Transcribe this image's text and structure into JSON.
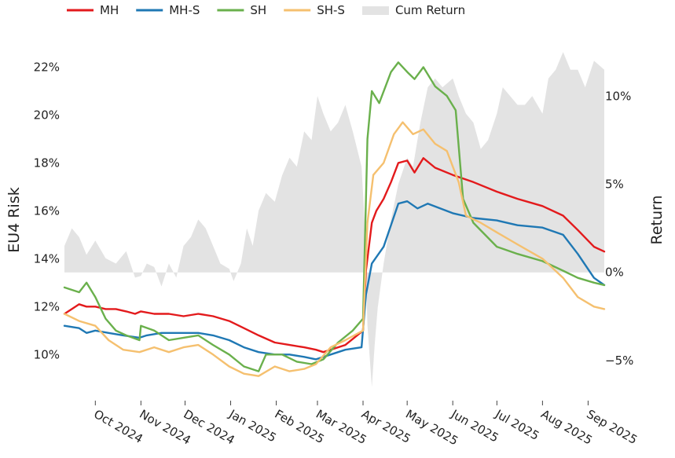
{
  "chart_data": {
    "type": "line",
    "xlabel": "",
    "ylabel": "EU4 Risk",
    "y2label": "Return",
    "ylim": [
      8.5,
      23.0
    ],
    "y2lim": [
      -6.7,
      13.0
    ],
    "y_ticks": [
      10,
      12,
      14,
      16,
      18,
      20,
      22
    ],
    "y_tick_labels": [
      "10%",
      "12%",
      "14%",
      "16%",
      "18%",
      "20%",
      "22%"
    ],
    "y2_ticks": [
      -5,
      0,
      5,
      10
    ],
    "y2_tick_labels": [
      "−5%",
      "0%",
      "5%",
      "10%"
    ],
    "x_range": [
      "2024-09-10",
      "2025-09-12"
    ],
    "x_ticks": [
      "2024-10-01",
      "2024-11-01",
      "2024-12-01",
      "2025-01-01",
      "2025-02-01",
      "2025-03-01",
      "2025-04-01",
      "2025-05-01",
      "2025-06-01",
      "2025-07-01",
      "2025-08-01",
      "2025-09-01"
    ],
    "x_tick_labels": [
      "Oct 2024",
      "Nov 2024",
      "Dec 2024",
      "Jan 2025",
      "Feb 2025",
      "Mar 2025",
      "Apr 2025",
      "May 2025",
      "Jun 2025",
      "Jul 2025",
      "Aug 2025",
      "Sep 2025"
    ],
    "legend_position": "top-left",
    "grid": false,
    "colors": {
      "MH": "#e31a1c",
      "MH-S": "#1f78b4",
      "SH": "#6ab04c",
      "SH-S": "#f5c06f",
      "Cum Return": "#e3e3e3"
    },
    "series": [
      {
        "name": "MH",
        "axis": "left",
        "points": [
          [
            "2024-09-10",
            11.7
          ],
          [
            "2024-09-15",
            11.9
          ],
          [
            "2024-09-20",
            12.1
          ],
          [
            "2024-09-25",
            12.0
          ],
          [
            "2024-10-01",
            12.0
          ],
          [
            "2024-10-08",
            11.9
          ],
          [
            "2024-10-15",
            11.9
          ],
          [
            "2024-10-22",
            11.8
          ],
          [
            "2024-10-28",
            11.7
          ],
          [
            "2024-11-01",
            11.8
          ],
          [
            "2024-11-10",
            11.7
          ],
          [
            "2024-11-20",
            11.7
          ],
          [
            "2024-11-30",
            11.6
          ],
          [
            "2024-12-10",
            11.7
          ],
          [
            "2024-12-20",
            11.6
          ],
          [
            "2024-12-31",
            11.4
          ],
          [
            "2025-01-10",
            11.1
          ],
          [
            "2025-01-20",
            10.8
          ],
          [
            "2025-01-31",
            10.5
          ],
          [
            "2025-02-10",
            10.4
          ],
          [
            "2025-02-20",
            10.3
          ],
          [
            "2025-02-28",
            10.2
          ],
          [
            "2025-03-05",
            10.1
          ],
          [
            "2025-03-10",
            10.2
          ],
          [
            "2025-03-20",
            10.4
          ],
          [
            "2025-03-28",
            10.8
          ],
          [
            "2025-04-01",
            11.0
          ],
          [
            "2025-04-03",
            13.5
          ],
          [
            "2025-04-07",
            15.5
          ],
          [
            "2025-04-10",
            16.0
          ],
          [
            "2025-04-15",
            16.5
          ],
          [
            "2025-04-20",
            17.2
          ],
          [
            "2025-04-25",
            18.0
          ],
          [
            "2025-05-01",
            18.1
          ],
          [
            "2025-05-06",
            17.6
          ],
          [
            "2025-05-12",
            18.2
          ],
          [
            "2025-05-20",
            17.8
          ],
          [
            "2025-06-01",
            17.5
          ],
          [
            "2025-06-15",
            17.2
          ],
          [
            "2025-07-01",
            16.8
          ],
          [
            "2025-07-15",
            16.5
          ],
          [
            "2025-08-01",
            16.2
          ],
          [
            "2025-08-15",
            15.8
          ],
          [
            "2025-08-25",
            15.2
          ],
          [
            "2025-09-05",
            14.5
          ],
          [
            "2025-09-12",
            14.3
          ]
        ]
      },
      {
        "name": "MH-S",
        "axis": "left",
        "points": [
          [
            "2024-09-10",
            11.2
          ],
          [
            "2024-09-20",
            11.1
          ],
          [
            "2024-09-25",
            10.9
          ],
          [
            "2024-10-01",
            11.0
          ],
          [
            "2024-10-10",
            10.9
          ],
          [
            "2024-10-20",
            10.8
          ],
          [
            "2024-10-31",
            10.7
          ],
          [
            "2024-11-05",
            10.8
          ],
          [
            "2024-11-15",
            10.9
          ],
          [
            "2024-11-30",
            10.9
          ],
          [
            "2024-12-10",
            10.9
          ],
          [
            "2024-12-20",
            10.8
          ],
          [
            "2024-12-31",
            10.6
          ],
          [
            "2025-01-10",
            10.3
          ],
          [
            "2025-01-20",
            10.1
          ],
          [
            "2025-01-31",
            10.0
          ],
          [
            "2025-02-10",
            10.0
          ],
          [
            "2025-02-20",
            9.9
          ],
          [
            "2025-02-28",
            9.8
          ],
          [
            "2025-03-10",
            10.0
          ],
          [
            "2025-03-20",
            10.2
          ],
          [
            "2025-03-31",
            10.3
          ],
          [
            "2025-04-03",
            12.5
          ],
          [
            "2025-04-07",
            13.8
          ],
          [
            "2025-04-15",
            14.5
          ],
          [
            "2025-04-25",
            16.3
          ],
          [
            "2025-05-01",
            16.4
          ],
          [
            "2025-05-08",
            16.1
          ],
          [
            "2025-05-15",
            16.3
          ],
          [
            "2025-06-01",
            15.9
          ],
          [
            "2025-06-15",
            15.7
          ],
          [
            "2025-07-01",
            15.6
          ],
          [
            "2025-07-15",
            15.4
          ],
          [
            "2025-08-01",
            15.3
          ],
          [
            "2025-08-15",
            15.0
          ],
          [
            "2025-08-25",
            14.2
          ],
          [
            "2025-09-05",
            13.2
          ],
          [
            "2025-09-12",
            12.9
          ]
        ]
      },
      {
        "name": "SH",
        "axis": "left",
        "points": [
          [
            "2024-09-10",
            12.8
          ],
          [
            "2024-09-20",
            12.6
          ],
          [
            "2024-09-25",
            13.0
          ],
          [
            "2024-10-01",
            12.4
          ],
          [
            "2024-10-08",
            11.5
          ],
          [
            "2024-10-15",
            11.0
          ],
          [
            "2024-10-22",
            10.8
          ],
          [
            "2024-10-31",
            10.6
          ],
          [
            "2024-11-01",
            11.2
          ],
          [
            "2024-11-10",
            11.0
          ],
          [
            "2024-11-20",
            10.6
          ],
          [
            "2024-11-30",
            10.7
          ],
          [
            "2024-12-10",
            10.8
          ],
          [
            "2024-12-20",
            10.4
          ],
          [
            "2024-12-31",
            10.0
          ],
          [
            "2025-01-10",
            9.5
          ],
          [
            "2025-01-20",
            9.3
          ],
          [
            "2025-01-25",
            10.0
          ],
          [
            "2025-02-05",
            10.0
          ],
          [
            "2025-02-15",
            9.7
          ],
          [
            "2025-02-25",
            9.6
          ],
          [
            "2025-03-05",
            9.8
          ],
          [
            "2025-03-15",
            10.5
          ],
          [
            "2025-03-25",
            11.0
          ],
          [
            "2025-04-01",
            11.5
          ],
          [
            "2025-04-04",
            19.0
          ],
          [
            "2025-04-07",
            21.0
          ],
          [
            "2025-04-12",
            20.5
          ],
          [
            "2025-04-20",
            21.8
          ],
          [
            "2025-04-25",
            22.2
          ],
          [
            "2025-05-01",
            21.8
          ],
          [
            "2025-05-06",
            21.5
          ],
          [
            "2025-05-12",
            22.0
          ],
          [
            "2025-05-20",
            21.2
          ],
          [
            "2025-05-28",
            20.8
          ],
          [
            "2025-06-03",
            20.2
          ],
          [
            "2025-06-08",
            16.5
          ],
          [
            "2025-06-15",
            15.5
          ],
          [
            "2025-07-01",
            14.5
          ],
          [
            "2025-07-15",
            14.2
          ],
          [
            "2025-08-01",
            13.9
          ],
          [
            "2025-08-15",
            13.5
          ],
          [
            "2025-08-25",
            13.2
          ],
          [
            "2025-09-05",
            13.0
          ],
          [
            "2025-09-12",
            12.9
          ]
        ]
      },
      {
        "name": "SH-S",
        "axis": "left",
        "points": [
          [
            "2024-09-10",
            11.7
          ],
          [
            "2024-09-20",
            11.4
          ],
          [
            "2024-10-01",
            11.2
          ],
          [
            "2024-10-10",
            10.6
          ],
          [
            "2024-10-20",
            10.2
          ],
          [
            "2024-10-31",
            10.1
          ],
          [
            "2024-11-10",
            10.3
          ],
          [
            "2024-11-20",
            10.1
          ],
          [
            "2024-11-30",
            10.3
          ],
          [
            "2024-12-10",
            10.4
          ],
          [
            "2024-12-20",
            10.0
          ],
          [
            "2024-12-31",
            9.5
          ],
          [
            "2025-01-10",
            9.2
          ],
          [
            "2025-01-20",
            9.1
          ],
          [
            "2025-01-31",
            9.5
          ],
          [
            "2025-02-10",
            9.3
          ],
          [
            "2025-02-20",
            9.4
          ],
          [
            "2025-02-28",
            9.6
          ],
          [
            "2025-03-10",
            10.3
          ],
          [
            "2025-03-20",
            10.6
          ],
          [
            "2025-04-01",
            11.0
          ],
          [
            "2025-04-04",
            15.5
          ],
          [
            "2025-04-08",
            17.5
          ],
          [
            "2025-04-15",
            18.0
          ],
          [
            "2025-04-22",
            19.2
          ],
          [
            "2025-04-28",
            19.7
          ],
          [
            "2025-05-05",
            19.2
          ],
          [
            "2025-05-12",
            19.4
          ],
          [
            "2025-05-20",
            18.8
          ],
          [
            "2025-05-28",
            18.5
          ],
          [
            "2025-06-05",
            17.2
          ],
          [
            "2025-06-10",
            15.8
          ],
          [
            "2025-06-20",
            15.5
          ],
          [
            "2025-07-01",
            15.1
          ],
          [
            "2025-07-15",
            14.6
          ],
          [
            "2025-08-01",
            14.0
          ],
          [
            "2025-08-15",
            13.2
          ],
          [
            "2025-08-25",
            12.4
          ],
          [
            "2025-09-05",
            12.0
          ],
          [
            "2025-09-12",
            11.9
          ]
        ]
      },
      {
        "name": "Cum Return",
        "axis": "right",
        "kind": "area",
        "points": [
          [
            "2024-09-10",
            1.5
          ],
          [
            "2024-09-15",
            2.5
          ],
          [
            "2024-09-20",
            2.0
          ],
          [
            "2024-09-25",
            1.0
          ],
          [
            "2024-10-01",
            1.8
          ],
          [
            "2024-10-08",
            0.8
          ],
          [
            "2024-10-15",
            0.5
          ],
          [
            "2024-10-22",
            1.2
          ],
          [
            "2024-10-28",
            -0.3
          ],
          [
            "2024-11-01",
            -0.2
          ],
          [
            "2024-11-05",
            0.5
          ],
          [
            "2024-11-10",
            0.3
          ],
          [
            "2024-11-15",
            -0.8
          ],
          [
            "2024-11-20",
            0.5
          ],
          [
            "2024-11-25",
            -0.3
          ],
          [
            "2024-11-30",
            1.5
          ],
          [
            "2024-12-05",
            2.0
          ],
          [
            "2024-12-10",
            3.0
          ],
          [
            "2024-12-15",
            2.5
          ],
          [
            "2024-12-20",
            1.5
          ],
          [
            "2024-12-25",
            0.5
          ],
          [
            "2024-12-31",
            0.2
          ],
          [
            "2025-01-03",
            -0.5
          ],
          [
            "2025-01-08",
            0.5
          ],
          [
            "2025-01-12",
            2.5
          ],
          [
            "2025-01-16",
            1.5
          ],
          [
            "2025-01-20",
            3.5
          ],
          [
            "2025-01-25",
            4.5
          ],
          [
            "2025-01-31",
            4.0
          ],
          [
            "2025-02-05",
            5.5
          ],
          [
            "2025-02-10",
            6.5
          ],
          [
            "2025-02-15",
            6.0
          ],
          [
            "2025-02-20",
            8.0
          ],
          [
            "2025-02-25",
            7.5
          ],
          [
            "2025-03-01",
            10.0
          ],
          [
            "2025-03-05",
            9.0
          ],
          [
            "2025-03-10",
            8.0
          ],
          [
            "2025-03-15",
            8.5
          ],
          [
            "2025-03-20",
            9.5
          ],
          [
            "2025-03-25",
            8.0
          ],
          [
            "2025-03-31",
            6.0
          ],
          [
            "2025-04-02",
            3.0
          ],
          [
            "2025-04-04",
            -3.0
          ],
          [
            "2025-04-07",
            -6.5
          ],
          [
            "2025-04-09",
            -4.0
          ],
          [
            "2025-04-11",
            -2.0
          ],
          [
            "2025-04-15",
            0.5
          ],
          [
            "2025-04-20",
            3.0
          ],
          [
            "2025-04-25",
            5.0
          ],
          [
            "2025-05-01",
            6.5
          ],
          [
            "2025-05-05",
            6.0
          ],
          [
            "2025-05-10",
            8.5
          ],
          [
            "2025-05-15",
            10.5
          ],
          [
            "2025-05-20",
            11.0
          ],
          [
            "2025-05-25",
            10.5
          ],
          [
            "2025-06-01",
            11.0
          ],
          [
            "2025-06-05",
            10.0
          ],
          [
            "2025-06-10",
            9.0
          ],
          [
            "2025-06-15",
            8.5
          ],
          [
            "2025-06-20",
            7.0
          ],
          [
            "2025-06-25",
            7.5
          ],
          [
            "2025-07-01",
            9.0
          ],
          [
            "2025-07-05",
            10.5
          ],
          [
            "2025-07-10",
            10.0
          ],
          [
            "2025-07-15",
            9.5
          ],
          [
            "2025-07-20",
            9.5
          ],
          [
            "2025-07-25",
            10.0
          ],
          [
            "2025-08-01",
            9.0
          ],
          [
            "2025-08-05",
            11.0
          ],
          [
            "2025-08-10",
            11.5
          ],
          [
            "2025-08-15",
            12.5
          ],
          [
            "2025-08-20",
            11.5
          ],
          [
            "2025-08-25",
            11.5
          ],
          [
            "2025-08-30",
            10.5
          ],
          [
            "2025-09-05",
            12.0
          ],
          [
            "2025-09-12",
            11.5
          ]
        ]
      }
    ]
  }
}
